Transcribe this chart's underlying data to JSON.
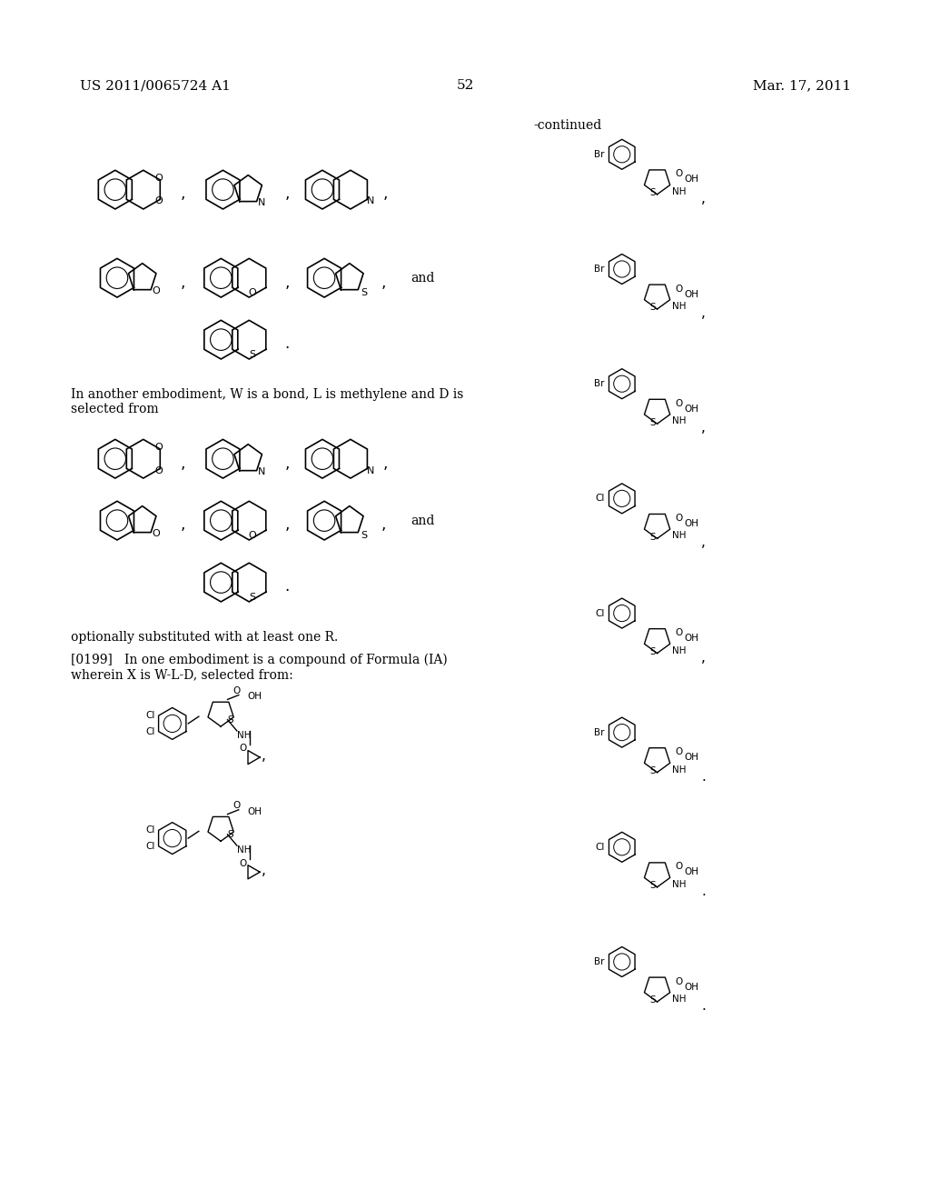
{
  "bg_color": "#ffffff",
  "text_color": "#000000",
  "patent_number": "US 2011/0065724 A1",
  "date": "Mar. 17, 2011",
  "page_number": "52",
  "continued_label": "-continued",
  "text1": "In another embodiment, W is a bond, L is methylene and D is\nselected from",
  "text2": "optionally substituted with at least one R.",
  "text3": "[0199]   In one embodiment is a compound of Formula (IA)\nwherein X is W-L-D, selected from:"
}
